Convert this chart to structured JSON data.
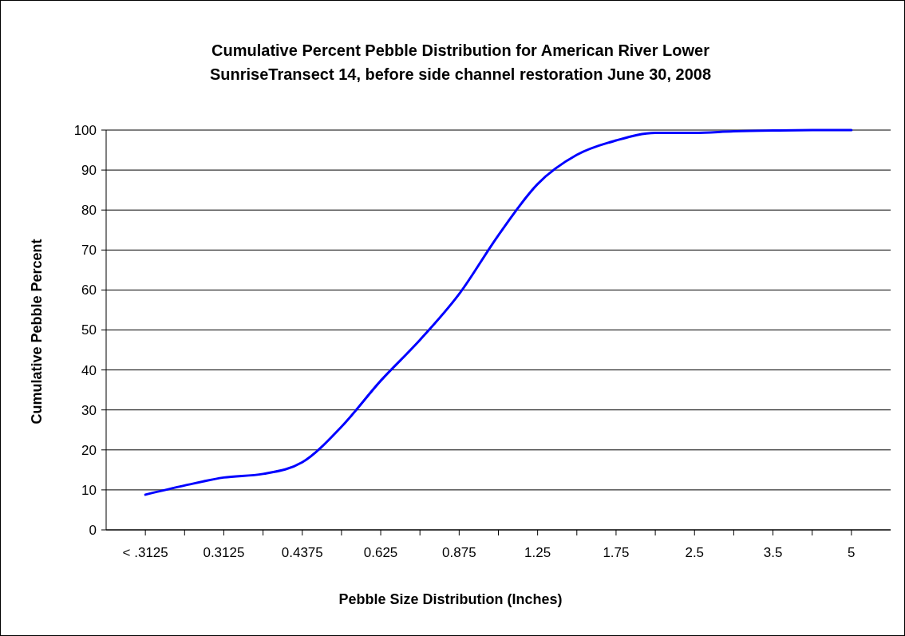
{
  "chart_data": {
    "type": "line",
    "title": "Cumulative Percent Pebble Distribution for American River Lower\nSunriseTransect 14, before side channel restoration June 30, 2008",
    "xlabel": "Pebble Size Distribution (Inches)",
    "ylabel": "Cumulative Pebble Percent",
    "categories": [
      "< .3125",
      null,
      "0.3125",
      null,
      "0.4375",
      null,
      "0.625",
      null,
      "0.875",
      null,
      "1.25",
      null,
      "1.75",
      null,
      "2.5",
      null,
      "3.5",
      null,
      "5"
    ],
    "series": [
      {
        "color": "#0000ff",
        "values": [
          8.8,
          11.1,
          13.1,
          14.0,
          16.9,
          25.8,
          37.3,
          47.5,
          59.0,
          73.7,
          86.5,
          93.8,
          97.4,
          99.3,
          99.3,
          99.7,
          99.9,
          100,
          100
        ]
      }
    ],
    "ylim": [
      0,
      100
    ],
    "yticks": [
      0,
      10,
      20,
      30,
      40,
      50,
      60,
      70,
      80,
      90,
      100
    ],
    "grid": "y",
    "marker": "none",
    "line_style": "solid"
  }
}
